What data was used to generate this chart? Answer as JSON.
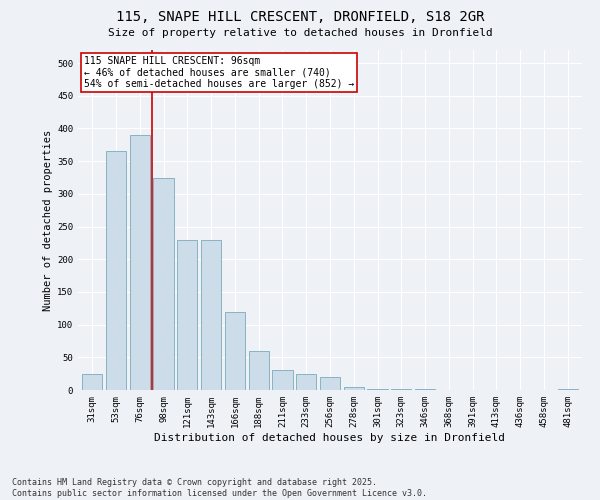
{
  "title_line1": "115, SNAPE HILL CRESCENT, DRONFIELD, S18 2GR",
  "title_line2": "Size of property relative to detached houses in Dronfield",
  "xlabel": "Distribution of detached houses by size in Dronfield",
  "ylabel": "Number of detached properties",
  "categories": [
    "31sqm",
    "53sqm",
    "76sqm",
    "98sqm",
    "121sqm",
    "143sqm",
    "166sqm",
    "188sqm",
    "211sqm",
    "233sqm",
    "256sqm",
    "278sqm",
    "301sqm",
    "323sqm",
    "346sqm",
    "368sqm",
    "391sqm",
    "413sqm",
    "436sqm",
    "458sqm",
    "481sqm"
  ],
  "values": [
    25,
    365,
    390,
    325,
    230,
    230,
    120,
    60,
    30,
    25,
    20,
    5,
    2,
    1,
    1,
    0,
    0,
    0,
    0,
    0,
    2
  ],
  "bar_color": "#ccdce8",
  "bar_edge_color": "#7aaabb",
  "vline_color": "#cc0000",
  "vline_x_index": 2.5,
  "annotation_text": "115 SNAPE HILL CRESCENT: 96sqm\n← 46% of detached houses are smaller (740)\n54% of semi-detached houses are larger (852) →",
  "annotation_box_facecolor": "#ffffff",
  "annotation_box_edgecolor": "#cc0000",
  "ylim": [
    0,
    520
  ],
  "yticks": [
    0,
    50,
    100,
    150,
    200,
    250,
    300,
    350,
    400,
    450,
    500
  ],
  "footer_line1": "Contains HM Land Registry data © Crown copyright and database right 2025.",
  "footer_line2": "Contains public sector information licensed under the Open Government Licence v3.0.",
  "bg_color": "#eef2f6",
  "grid_color": "#ffffff",
  "title_fontsize": 10,
  "subtitle_fontsize": 8,
  "ylabel_fontsize": 7.5,
  "xlabel_fontsize": 8,
  "tick_fontsize": 6.5,
  "annot_fontsize": 7,
  "footer_fontsize": 6
}
